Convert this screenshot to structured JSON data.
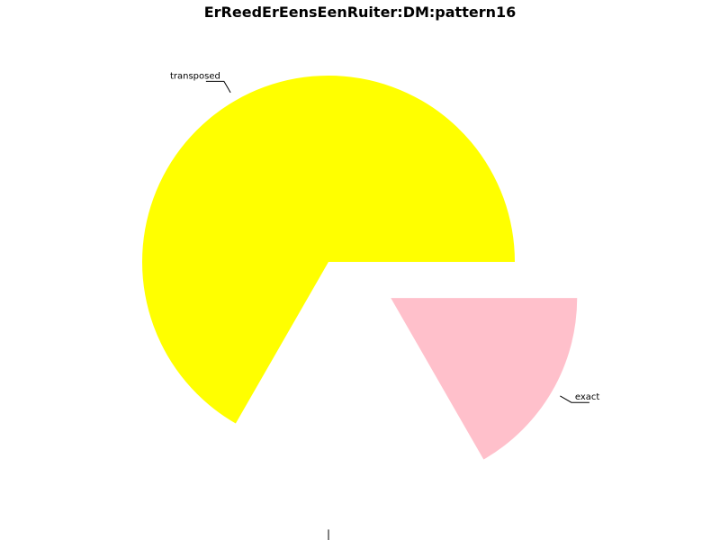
{
  "chart_data": {
    "type": "pie",
    "title": "ErReedErEensEenRuiter:DM:pattern16",
    "slices": [
      {
        "label": "transposed",
        "value": 66.7,
        "color": "#ffff00",
        "exploded": false
      },
      {
        "label": "",
        "value": 16.6,
        "color": "#ffffff",
        "exploded": true
      },
      {
        "label": "exact",
        "value": 16.7,
        "color": "#ffc0cb",
        "exploded": true
      }
    ],
    "start_angle_deg": 0,
    "direction": "counterclockwise",
    "legend": "none"
  }
}
